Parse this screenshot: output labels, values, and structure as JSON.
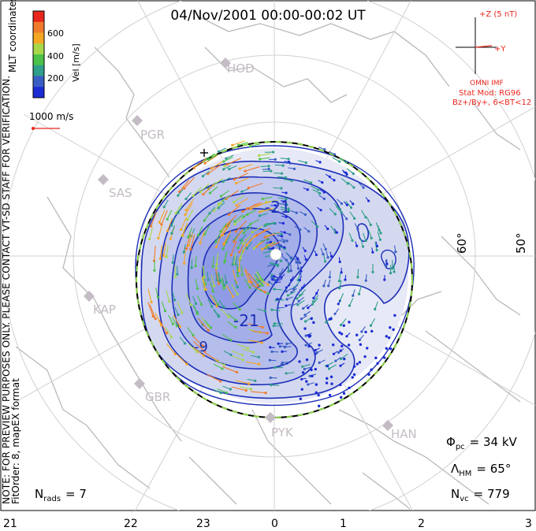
{
  "title": "04/Nov/2001 00:00-00:02 UT",
  "colorbar": {
    "label": "Vel [m/s]",
    "ticks": [
      "600",
      "400",
      "200"
    ],
    "colors": [
      "#e8261c",
      "#f07a2c",
      "#f5a623",
      "#a8d84a",
      "#4cc24a",
      "#2f9e8a",
      "#3a5fc4",
      "#1c2cd4"
    ]
  },
  "left_text": {
    "coords": "MLT coordinates",
    "note": "NOTE: FOR PREVIEW PURPOSES ONLY. PLEASE CONTACT VT-SD STAFF FOR VERIFICATION.",
    "fit": "FitOrder: 8, mapEX format"
  },
  "reference_vector": "1000 m/s",
  "imf": {
    "z_label": "+Z (5 nT)",
    "y_label": "+Y",
    "source": "OMNI IMF",
    "model": "Stat Mod: RG96",
    "condition": "Bz+/By+, 6<BT<12"
  },
  "stations": [
    "HOD",
    "PGR",
    "SAS",
    "KAP",
    "GBR",
    "PYK",
    "HAN"
  ],
  "latitude_labels": [
    "60°",
    "50°"
  ],
  "contour_labels": [
    "-21",
    "-21",
    "-9"
  ],
  "stats": {
    "phi_pc_symbol": "Φ",
    "phi_pc_sub": "pc",
    "phi_pc_value": "= 34 kV",
    "lambda_symbol": "Λ",
    "lambda_sub": "HM",
    "lambda_value": "= 65°",
    "nrads_symbol": "N",
    "nrads_sub": "rads",
    "nrads_value": "= 7",
    "nvc_symbol": "N",
    "nvc_sub": "vc",
    "nvc_value": "= 779"
  },
  "mlt_axis": [
    "21",
    "22",
    "23",
    "0",
    "1",
    "2",
    "3"
  ],
  "map_data": {
    "projection": "polar stereographic, MLT coordinates, noon at top",
    "boundary_latitude_deg": 65,
    "cross_polar_cap_potential_kV": 34,
    "num_radars": 7,
    "num_vectors": 779,
    "velocity_scale_m_per_s": [
      0,
      700
    ]
  }
}
